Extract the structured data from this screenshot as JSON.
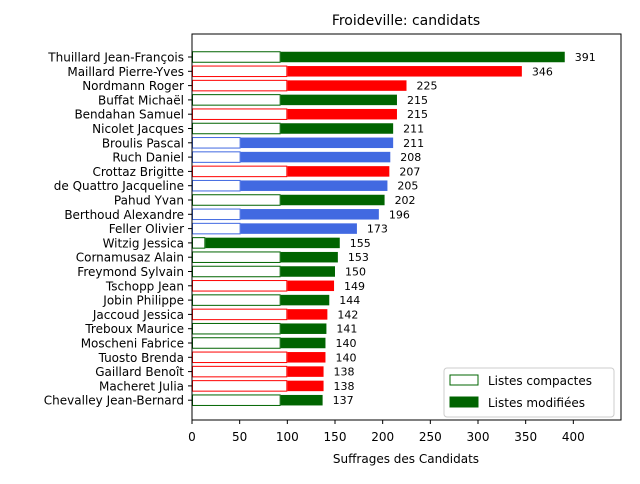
{
  "chart_data": {
    "type": "bar",
    "orientation": "horizontal",
    "stacked": true,
    "title": "Froideville: candidats",
    "xlabel": "Suffrages des Candidats",
    "ylabel": "",
    "xlim": [
      0,
      450
    ],
    "xticks": [
      0,
      50,
      100,
      150,
      200,
      250,
      300,
      350,
      400
    ],
    "grid": false,
    "legend": {
      "position": "bottom-right",
      "entries": [
        {
          "label": "Listes compactes",
          "style": "outline"
        },
        {
          "label": "Listes modifiées",
          "style": "filled"
        }
      ]
    },
    "colors": {
      "green": "#006400",
      "red": "#ff0000",
      "blue": "#4169e1"
    },
    "categories": [
      "Thuillard Jean-François",
      "Maillard Pierre-Yves",
      "Nordmann Roger",
      "Buffat Michaël",
      "Bendahan Samuel",
      "Nicolet Jacques",
      "Broulis Pascal",
      "Ruch Daniel",
      "Crottaz Brigitte",
      "de Quattro Jacqueline",
      "Pahud Yvan",
      "Berthoud Alexandre",
      "Feller Olivier",
      "Witzig Jessica",
      "Cornamusaz Alain",
      "Freymond Sylvain",
      "Tschopp Jean",
      "Jobin Philippe",
      "Jaccoud Jessica",
      "Treboux Maurice",
      "Moscheni Fabrice",
      "Tuosto Brenda",
      "Gaillard Benoît",
      "Macheret Julia",
      "Chevalley Jean-Bernard"
    ],
    "series": [
      {
        "name": "Listes compactes",
        "values": [
          93,
          100,
          100,
          93,
          100,
          93,
          51,
          51,
          100,
          51,
          93,
          51,
          51,
          14,
          93,
          93,
          100,
          93,
          100,
          93,
          93,
          100,
          100,
          100,
          93
        ]
      },
      {
        "name": "Listes modifiées",
        "values": [
          298,
          246,
          125,
          122,
          115,
          118,
          160,
          157,
          107,
          154,
          109,
          145,
          122,
          141,
          60,
          57,
          49,
          51,
          42,
          48,
          47,
          40,
          38,
          38,
          44
        ]
      }
    ],
    "totals": [
      391,
      346,
      225,
      215,
      215,
      211,
      211,
      208,
      207,
      205,
      202,
      196,
      173,
      155,
      153,
      150,
      149,
      144,
      142,
      141,
      140,
      140,
      138,
      138,
      137
    ],
    "bar_colors": [
      "#006400",
      "#ff0000",
      "#ff0000",
      "#006400",
      "#ff0000",
      "#006400",
      "#4169e1",
      "#4169e1",
      "#ff0000",
      "#4169e1",
      "#006400",
      "#4169e1",
      "#4169e1",
      "#006400",
      "#006400",
      "#006400",
      "#ff0000",
      "#006400",
      "#ff0000",
      "#006400",
      "#006400",
      "#ff0000",
      "#ff0000",
      "#ff0000",
      "#006400"
    ]
  }
}
